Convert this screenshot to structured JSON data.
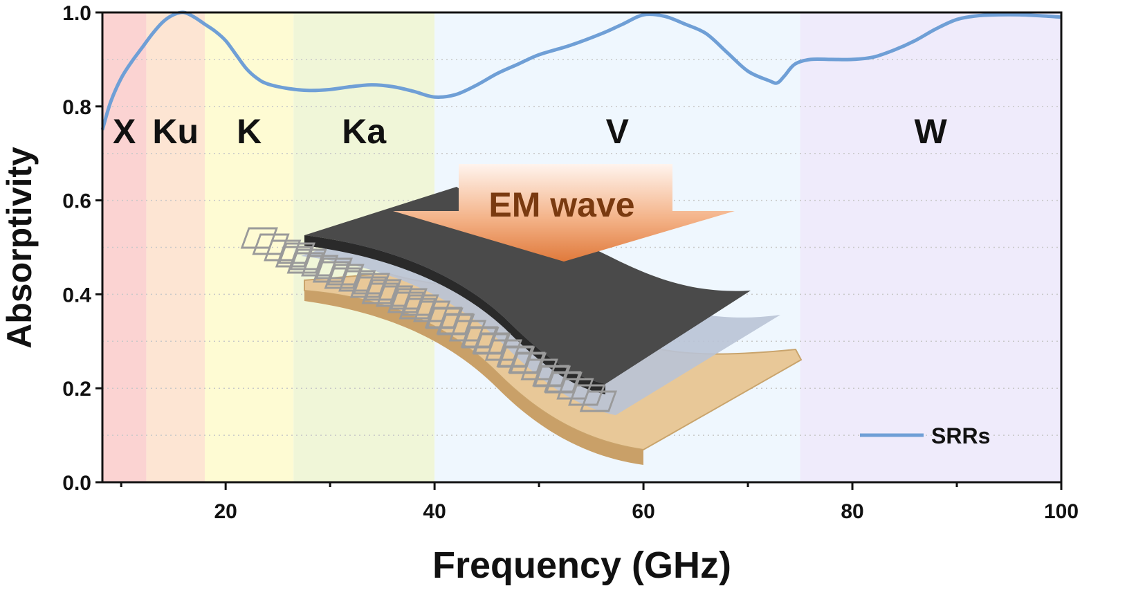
{
  "chart_data": {
    "type": "line",
    "title": "",
    "xlabel": "Frequency (GHz)",
    "ylabel": "Absorptivity",
    "xlim": [
      8.2,
      100
    ],
    "ylim": [
      0,
      1.0
    ],
    "xticks": [
      20,
      40,
      60,
      80,
      100
    ],
    "xtick_labels": [
      "20",
      "40",
      "60",
      "80",
      "100"
    ],
    "yticks": [
      0.0,
      0.2,
      0.4,
      0.6,
      0.8,
      1.0
    ],
    "ytick_labels": [
      "0.0",
      "0.2",
      "0.4",
      "0.6",
      "0.8",
      "1.0"
    ],
    "grid": "horizontal dotted every 0.1",
    "legend": {
      "position": "bottom-right",
      "entries": [
        "SRRs"
      ]
    },
    "bands": [
      {
        "label": "X",
        "range": [
          8.2,
          12.4
        ],
        "color": "#fbd3d2"
      },
      {
        "label": "Ku",
        "range": [
          12.4,
          18
        ],
        "color": "#fde5d3"
      },
      {
        "label": "K",
        "range": [
          18,
          26.5
        ],
        "color": "#fefbd3"
      },
      {
        "label": "Ka",
        "range": [
          26.5,
          40
        ],
        "color": "#f0f6d8"
      },
      {
        "label": "V",
        "range": [
          40,
          75
        ],
        "color": "#eff7fe"
      },
      {
        "label": "W",
        "range": [
          75,
          100
        ],
        "color": "#efebfb"
      }
    ],
    "series": [
      {
        "name": "SRRs",
        "color": "#6f9fd6",
        "x": [
          8.2,
          9,
          10,
          11,
          12,
          13,
          14,
          15,
          16,
          17,
          18,
          19,
          20,
          21,
          22,
          23,
          24,
          26,
          28,
          30,
          32,
          34,
          36,
          38,
          40,
          42,
          44,
          46,
          48,
          50,
          53,
          56,
          58,
          60,
          62,
          64,
          66,
          68,
          70,
          72,
          72.8,
          73.5,
          74.5,
          76,
          78,
          80,
          82,
          84,
          86,
          88,
          90,
          92,
          94,
          96,
          98,
          100
        ],
        "y": [
          0.75,
          0.81,
          0.86,
          0.895,
          0.925,
          0.955,
          0.98,
          0.995,
          1.0,
          0.99,
          0.975,
          0.96,
          0.94,
          0.91,
          0.88,
          0.86,
          0.848,
          0.838,
          0.834,
          0.836,
          0.842,
          0.846,
          0.842,
          0.832,
          0.82,
          0.825,
          0.845,
          0.87,
          0.89,
          0.91,
          0.93,
          0.955,
          0.975,
          0.995,
          0.992,
          0.975,
          0.955,
          0.915,
          0.875,
          0.855,
          0.85,
          0.865,
          0.89,
          0.9,
          0.9,
          0.9,
          0.905,
          0.92,
          0.94,
          0.965,
          0.985,
          0.993,
          0.995,
          0.995,
          0.993,
          0.99
        ]
      }
    ]
  },
  "inset": {
    "arrow_label": "EM wave"
  }
}
